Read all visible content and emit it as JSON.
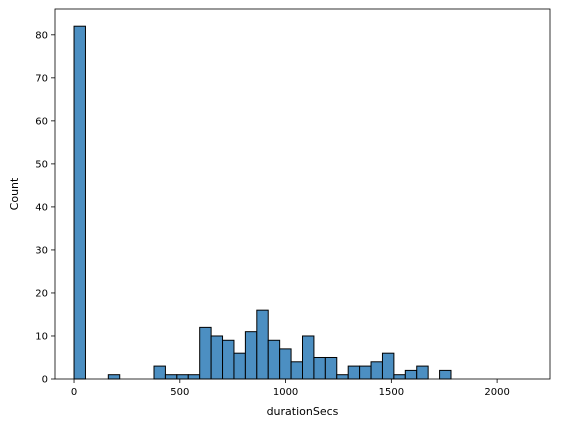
{
  "chart_data": {
    "type": "bar",
    "histogram": true,
    "xlabel": "durationSecs",
    "ylabel": "Count",
    "xlim": [
      -90,
      2250
    ],
    "ylim": [
      0,
      86
    ],
    "x_ticks": [
      0,
      500,
      1000,
      1500,
      2000
    ],
    "y_ticks": [
      0,
      10,
      20,
      30,
      40,
      50,
      60,
      70,
      80
    ],
    "bin_width": 54,
    "bin_start": 0,
    "bins": [
      {
        "x0": 0,
        "x1": 54,
        "count": 82
      },
      {
        "x0": 54,
        "x1": 108,
        "count": 0
      },
      {
        "x0": 108,
        "x1": 162,
        "count": 0
      },
      {
        "x0": 162,
        "x1": 216,
        "count": 1
      },
      {
        "x0": 216,
        "x1": 270,
        "count": 0
      },
      {
        "x0": 270,
        "x1": 324,
        "count": 0
      },
      {
        "x0": 324,
        "x1": 378,
        "count": 0
      },
      {
        "x0": 378,
        "x1": 432,
        "count": 3
      },
      {
        "x0": 432,
        "x1": 486,
        "count": 1
      },
      {
        "x0": 486,
        "x1": 540,
        "count": 1
      },
      {
        "x0": 540,
        "x1": 594,
        "count": 1
      },
      {
        "x0": 594,
        "x1": 648,
        "count": 12
      },
      {
        "x0": 648,
        "x1": 702,
        "count": 10
      },
      {
        "x0": 702,
        "x1": 756,
        "count": 9
      },
      {
        "x0": 756,
        "x1": 810,
        "count": 6
      },
      {
        "x0": 810,
        "x1": 864,
        "count": 11
      },
      {
        "x0": 864,
        "x1": 918,
        "count": 16
      },
      {
        "x0": 918,
        "x1": 972,
        "count": 9
      },
      {
        "x0": 972,
        "x1": 1026,
        "count": 7
      },
      {
        "x0": 1026,
        "x1": 1080,
        "count": 4
      },
      {
        "x0": 1080,
        "x1": 1134,
        "count": 10
      },
      {
        "x0": 1134,
        "x1": 1188,
        "count": 5
      },
      {
        "x0": 1188,
        "x1": 1242,
        "count": 5
      },
      {
        "x0": 1242,
        "x1": 1296,
        "count": 1
      },
      {
        "x0": 1296,
        "x1": 1350,
        "count": 3
      },
      {
        "x0": 1350,
        "x1": 1404,
        "count": 3
      },
      {
        "x0": 1404,
        "x1": 1458,
        "count": 4
      },
      {
        "x0": 1458,
        "x1": 1512,
        "count": 6
      },
      {
        "x0": 1512,
        "x1": 1566,
        "count": 1
      },
      {
        "x0": 1566,
        "x1": 1620,
        "count": 2
      },
      {
        "x0": 1620,
        "x1": 1674,
        "count": 3
      },
      {
        "x0": 1674,
        "x1": 1728,
        "count": 0
      },
      {
        "x0": 1728,
        "x1": 1782,
        "count": 2
      }
    ],
    "colors": {
      "bar_fill": "#4c8fc2",
      "bar_edge": "#000000",
      "axis": "#000000",
      "background": "#ffffff"
    },
    "grid": false,
    "legend": "none"
  }
}
